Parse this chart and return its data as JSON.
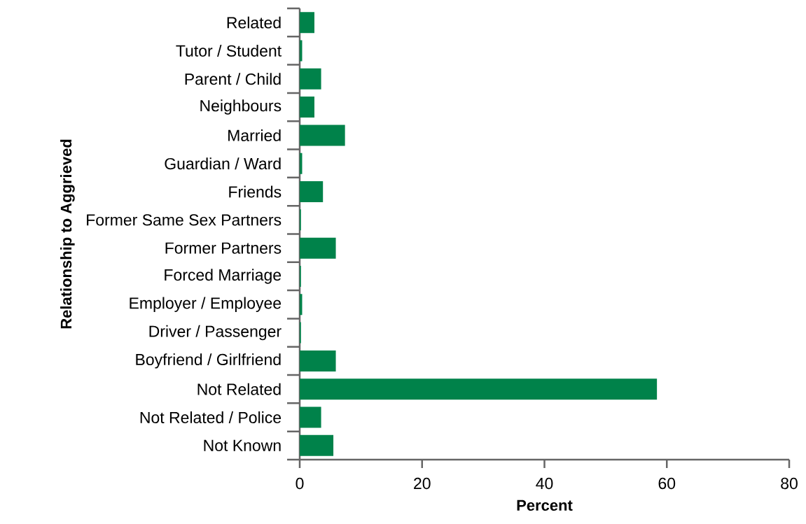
{
  "chart_data": {
    "type": "bar",
    "orientation": "horizontal",
    "xlabel": "Percent",
    "ylabel": "Relationship to Aggrieved",
    "categories": [
      "Related",
      "Tutor / Student",
      "Parent / Child",
      "Neighbours",
      "Married",
      "Guardian / Ward",
      "Friends",
      "Former Same Sex Partners",
      "Former Partners",
      "Forced Marriage",
      "Employer / Employee",
      "Driver / Passenger",
      "Boyfriend / Girlfriend",
      "Not Related",
      "Not Related / Police",
      "Not Known"
    ],
    "values": [
      2.4,
      0.4,
      3.5,
      2.4,
      7.4,
      0.4,
      3.8,
      0.2,
      5.9,
      0.2,
      0.4,
      0.2,
      5.9,
      58.4,
      3.5,
      5.5
    ],
    "color": "#00824a",
    "xlim": [
      0,
      80
    ],
    "xticks": [
      0,
      20,
      40,
      60,
      80
    ]
  }
}
